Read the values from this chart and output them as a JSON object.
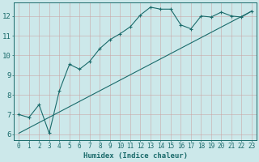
{
  "xlabel": "Humidex (Indice chaleur)",
  "bg_color": "#cce8ea",
  "grid_color": "#b0d8da",
  "line_color": "#1a6b6b",
  "xlim": [
    -0.5,
    23.5
  ],
  "ylim": [
    5.7,
    12.7
  ],
  "xticks": [
    0,
    1,
    2,
    3,
    4,
    5,
    6,
    7,
    8,
    9,
    10,
    11,
    12,
    13,
    14,
    15,
    16,
    17,
    18,
    19,
    20,
    21,
    22,
    23
  ],
  "yticks": [
    6,
    7,
    8,
    9,
    10,
    11,
    12
  ],
  "curve_x": [
    0,
    1,
    2,
    3,
    4,
    5,
    6,
    7,
    8,
    9,
    10,
    11,
    12,
    13,
    14,
    15,
    16,
    17,
    18,
    19,
    20,
    21,
    22,
    23
  ],
  "curve_y": [
    7.0,
    6.85,
    7.5,
    6.05,
    8.2,
    9.55,
    9.3,
    9.7,
    10.35,
    10.8,
    11.1,
    11.45,
    12.05,
    12.45,
    12.35,
    12.35,
    11.55,
    11.35,
    12.0,
    11.95,
    12.2,
    12.0,
    11.95,
    12.25
  ],
  "line_x": [
    0,
    23
  ],
  "line_y": [
    6.05,
    12.25
  ]
}
